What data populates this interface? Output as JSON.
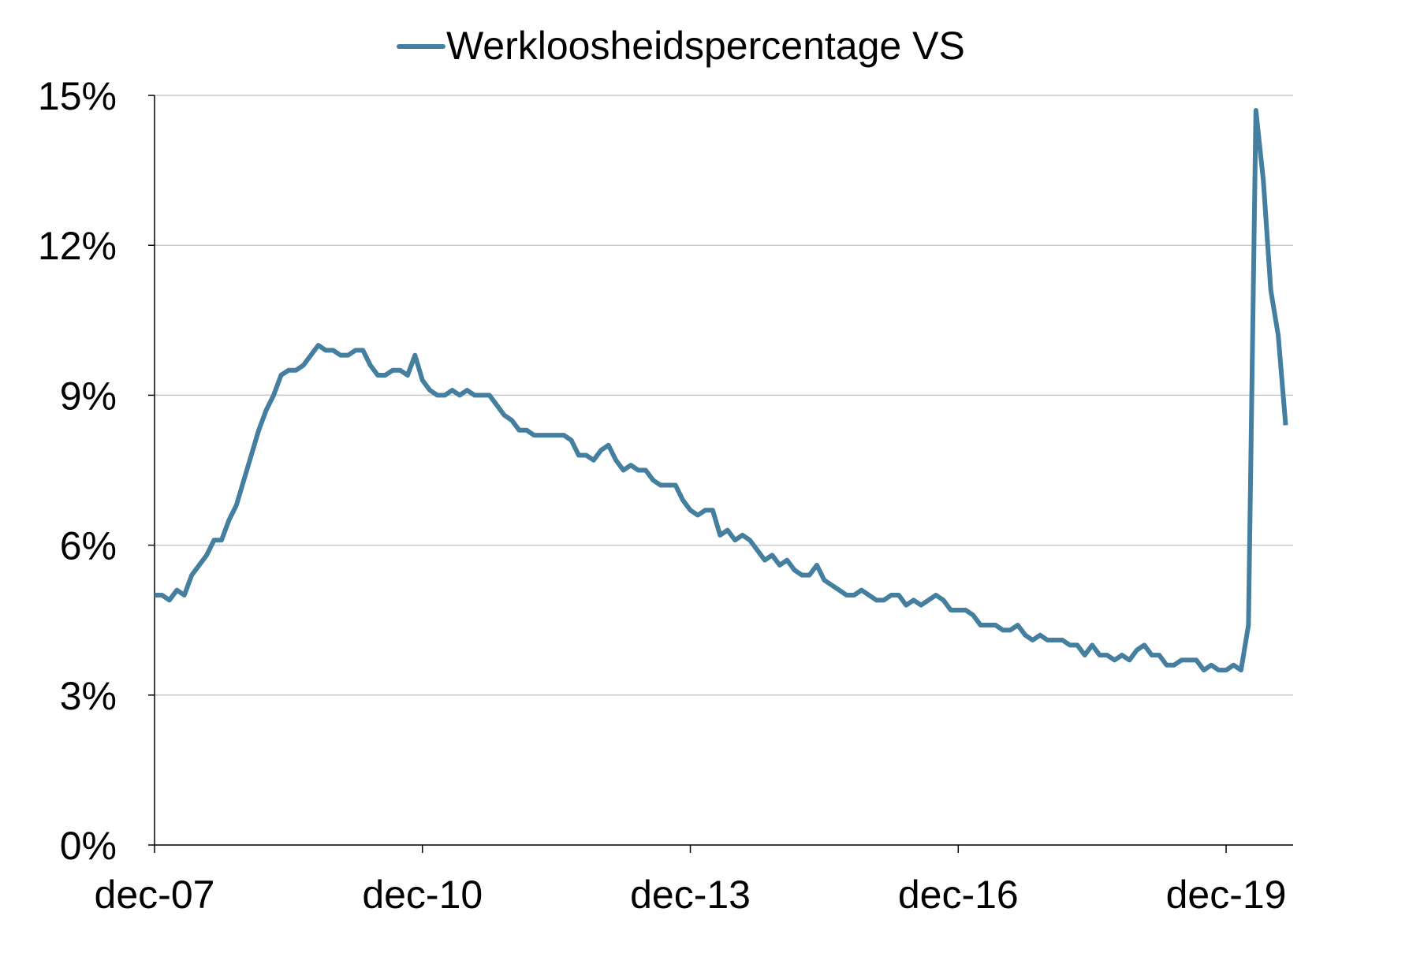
{
  "chart_data": {
    "type": "line",
    "title": "",
    "xlabel": "",
    "ylabel": "",
    "legend": {
      "position": "top-center",
      "entries": [
        "Werkloosheidspercentage VS"
      ]
    },
    "grid": {
      "horizontal": true,
      "vertical": false
    },
    "ylim": [
      0,
      15
    ],
    "y_ticks": [
      0,
      3,
      6,
      9,
      12,
      15
    ],
    "y_tick_labels": [
      "0%",
      "3%",
      "6%",
      "9%",
      "12%",
      "15%"
    ],
    "x_start": "2007-12",
    "x_end": "2020-09",
    "x_ticks": [
      "2007-12",
      "2010-12",
      "2013-12",
      "2016-12",
      "2019-12"
    ],
    "x_tick_labels": [
      "dec-07",
      "dec-10",
      "dec-13",
      "dec-16",
      "dec-19"
    ],
    "colors": {
      "series": "#457fa0",
      "grid": "#c8c8c8",
      "axis": "#000000"
    },
    "series": [
      {
        "name": "Werkloosheidspercentage VS",
        "x_start": "2007-12",
        "frequency": "monthly",
        "values": [
          5.0,
          5.0,
          4.9,
          5.1,
          5.0,
          5.4,
          5.6,
          5.8,
          6.1,
          6.1,
          6.5,
          6.8,
          7.3,
          7.8,
          8.3,
          8.7,
          9.0,
          9.4,
          9.5,
          9.5,
          9.6,
          9.8,
          10.0,
          9.9,
          9.9,
          9.8,
          9.8,
          9.9,
          9.9,
          9.6,
          9.4,
          9.4,
          9.5,
          9.5,
          9.4,
          9.8,
          9.3,
          9.1,
          9.0,
          9.0,
          9.1,
          9.0,
          9.1,
          9.0,
          9.0,
          9.0,
          8.8,
          8.6,
          8.5,
          8.3,
          8.3,
          8.2,
          8.2,
          8.2,
          8.2,
          8.2,
          8.1,
          7.8,
          7.8,
          7.7,
          7.9,
          8.0,
          7.7,
          7.5,
          7.6,
          7.5,
          7.5,
          7.3,
          7.2,
          7.2,
          7.2,
          6.9,
          6.7,
          6.6,
          6.7,
          6.7,
          6.2,
          6.3,
          6.1,
          6.2,
          6.1,
          5.9,
          5.7,
          5.8,
          5.6,
          5.7,
          5.5,
          5.4,
          5.4,
          5.6,
          5.3,
          5.2,
          5.1,
          5.0,
          5.0,
          5.1,
          5.0,
          4.9,
          4.9,
          5.0,
          5.0,
          4.8,
          4.9,
          4.8,
          4.9,
          5.0,
          4.9,
          4.7,
          4.7,
          4.7,
          4.6,
          4.4,
          4.4,
          4.4,
          4.3,
          4.3,
          4.4,
          4.2,
          4.1,
          4.2,
          4.1,
          4.1,
          4.1,
          4.0,
          4.0,
          3.8,
          4.0,
          3.8,
          3.8,
          3.7,
          3.8,
          3.7,
          3.9,
          4.0,
          3.8,
          3.8,
          3.6,
          3.6,
          3.7,
          3.7,
          3.7,
          3.5,
          3.6,
          3.5,
          3.5,
          3.6,
          3.5,
          4.4,
          14.7,
          13.3,
          11.1,
          10.2,
          8.4
        ]
      }
    ]
  }
}
